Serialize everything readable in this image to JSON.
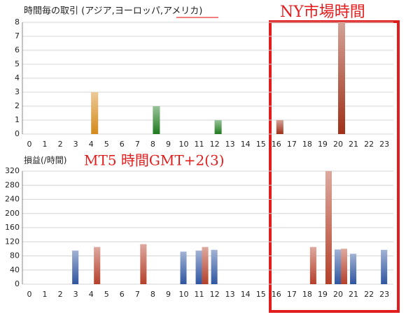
{
  "chart_data": [
    {
      "type": "bar",
      "title": "時間毎の取引 (アジア,ヨーロッパ,アメリカ)",
      "categories": [
        "0",
        "1",
        "2",
        "3",
        "4",
        "5",
        "6",
        "7",
        "8",
        "9",
        "10",
        "11",
        "12",
        "13",
        "14",
        "15",
        "16",
        "17",
        "18",
        "19",
        "20",
        "21",
        "22",
        "23"
      ],
      "values": [
        0,
        0,
        0,
        0,
        3,
        0,
        0,
        0,
        2,
        0,
        0,
        0,
        1,
        0,
        0,
        0,
        1,
        0,
        0,
        0,
        8,
        0,
        0,
        0
      ],
      "colors": [
        "#a03018",
        "#a03018",
        "#a03018",
        "#a03018",
        "#d4891a",
        "#a03018",
        "#a03018",
        "#a03018",
        "#1e7a1e",
        "#a03018",
        "#a03018",
        "#a03018",
        "#1e7a1e",
        "#a03018",
        "#a03018",
        "#a03018",
        "#a03018",
        "#a03018",
        "#a03018",
        "#a03018",
        "#a03018",
        "#a03018",
        "#a03018",
        "#a03018"
      ],
      "ylim": [
        0,
        8
      ],
      "yticks": [
        0,
        1,
        2,
        3,
        4,
        5,
        6,
        7,
        8
      ],
      "grid": true
    },
    {
      "type": "grouped-bar",
      "title": "損益(/時間)",
      "categories": [
        "0",
        "1",
        "2",
        "3",
        "4",
        "5",
        "6",
        "7",
        "8",
        "9",
        "10",
        "11",
        "12",
        "13",
        "14",
        "15",
        "16",
        "17",
        "18",
        "19",
        "20",
        "21",
        "22",
        "23"
      ],
      "series": [
        {
          "color": "#2f55a0",
          "values": [
            0,
            0,
            0,
            95,
            0,
            0,
            0,
            0,
            0,
            0,
            92,
            95,
            97,
            0,
            0,
            0,
            0,
            0,
            0,
            0,
            98,
            86,
            0,
            97
          ]
        },
        {
          "color": "#b5402a",
          "values": [
            0,
            0,
            0,
            0,
            105,
            0,
            0,
            113,
            0,
            0,
            0,
            105,
            0,
            0,
            0,
            0,
            0,
            0,
            105,
            320,
            100,
            0,
            0,
            0
          ]
        }
      ],
      "ylim": [
        0,
        320
      ],
      "yticks": [
        0,
        40,
        80,
        120,
        160,
        200,
        240,
        280,
        320
      ],
      "grid": true
    }
  ],
  "annotations": {
    "ny_market": "NY市場時間",
    "mt5_time": "MT5 時間GMT+2(3)"
  }
}
